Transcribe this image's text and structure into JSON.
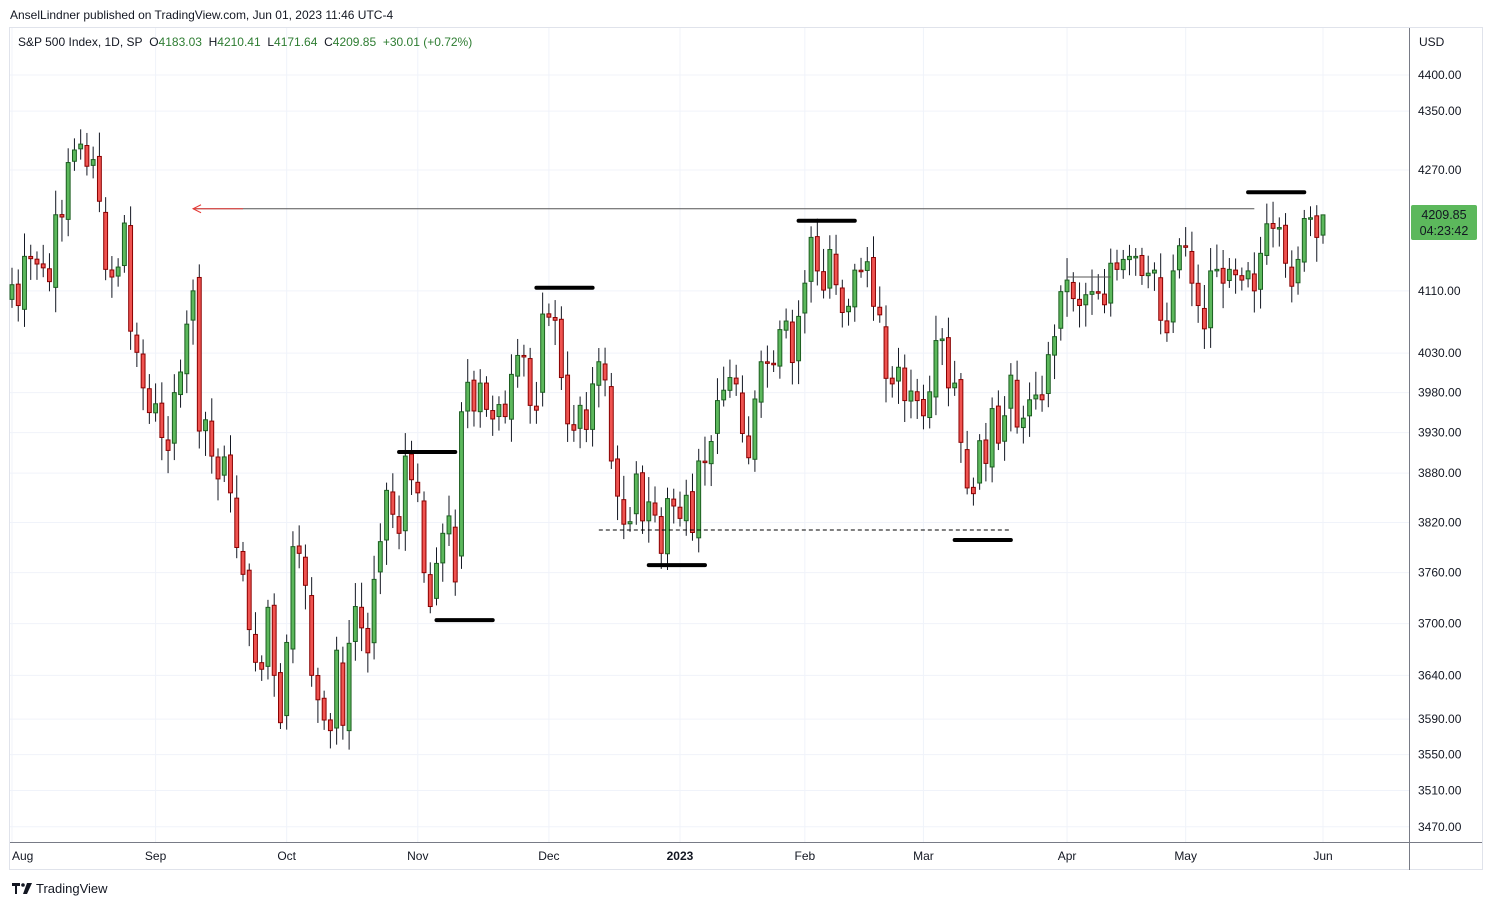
{
  "header": {
    "author_line": "AnselLindner published on TradingView.com, Jun 01, 2023 11:46 UTC-4",
    "symbol": "S&P 500 Index, 1D, SP",
    "open_label": "O",
    "open": "4183.03",
    "high_label": "H",
    "high": "4210.41",
    "low_label": "L",
    "low": "4171.64",
    "close_label": "C",
    "close": "4209.85",
    "change": "+30.01 (+0.72%)"
  },
  "currency": "USD",
  "last_price": {
    "price": "4209.85",
    "countdown": "04:23:42"
  },
  "brand": "TradingView",
  "colors": {
    "up": "#5cb85c",
    "up_border": "#1b5e20",
    "down": "#ef5350",
    "down_border": "#8b0000",
    "wick": "#131722",
    "arrow": "#e53935"
  },
  "chart_data": {
    "type": "candlestick",
    "title": "S&P 500 Index, 1D, SP",
    "scale": "log",
    "ylim": [
      3440,
      4440
    ],
    "price_ticks": [
      4400,
      4350,
      4270,
      4110,
      4030,
      3980,
      3930,
      3880,
      3820,
      3760,
      3700,
      3640,
      3590,
      3550,
      3510,
      3470
    ],
    "month_ticks": [
      {
        "label": "Aug",
        "index": 0
      },
      {
        "label": "Sep",
        "index": 23
      },
      {
        "label": "Oct",
        "index": 44
      },
      {
        "label": "Nov",
        "index": 65
      },
      {
        "label": "Dec",
        "index": 86
      },
      {
        "label": "2023",
        "index": 107,
        "bold": true
      },
      {
        "label": "Feb",
        "index": 127
      },
      {
        "label": "Mar",
        "index": 146
      },
      {
        "label": "Apr",
        "index": 169
      },
      {
        "label": "May",
        "index": 188
      },
      {
        "label": "Jun",
        "index": 210
      }
    ],
    "closes": [
      4118,
      4091,
      4155,
      4152,
      4145,
      4140,
      4122,
      4210,
      4207,
      4280,
      4297,
      4305,
      4275,
      4284,
      4228,
      4138,
      4128,
      4141,
      4199,
      4058,
      4031,
      3986,
      3955,
      3966,
      3924,
      3908,
      3980,
      4006,
      4067,
      4110,
      3932,
      3946,
      3901,
      3873,
      3900,
      3856,
      3790,
      3758,
      3693,
      3655,
      3647,
      3719,
      3640,
      3586,
      3678,
      3791,
      3783,
      3745,
      3640,
      3612,
      3589,
      3577,
      3669,
      3583,
      3677,
      3720,
      3695,
      3666,
      3752,
      3797,
      3859,
      3830,
      3807,
      3901,
      3872,
      3856,
      3760,
      3720,
      3771,
      3807,
      3828,
      3749,
      3956,
      3993,
      3957,
      3992,
      3959,
      3947,
      3965,
      3950,
      4003,
      4027,
      4026,
      3964,
      3958,
      4080,
      4076,
      4072,
      3999,
      3941,
      3933,
      3964,
      3934,
      3991,
      4019,
      3996,
      3895,
      3852,
      3818,
      3821,
      3879,
      3822,
      3845,
      3829,
      3783,
      3849,
      3840,
      3825,
      3853,
      3808,
      3895,
      3893,
      3919,
      3970,
      3983,
      3999,
      3991,
      3929,
      3899,
      3972,
      4019,
      4017,
      4016,
      4060,
      4071,
      4018,
      4077,
      4120,
      4180,
      4136,
      4111,
      4164,
      4118,
      4082,
      4090,
      4137,
      4136,
      4148,
      4090,
      4079,
      3998,
      3991,
      4012,
      3970,
      3982,
      3970,
      3951,
      3981,
      4046,
      4048,
      3986,
      3992,
      3918,
      3862,
      3855,
      3920,
      3892,
      3960,
      3917,
      3951,
      4002,
      3937,
      3948,
      3971,
      3977,
      3971,
      4028,
      4051,
      4109,
      4124,
      4100,
      4091,
      4105,
      4109,
      4108,
      4092,
      4146,
      4138,
      4151,
      4155,
      4155,
      4130,
      4133,
      4137,
      4072,
      4056,
      4136,
      4169,
      4168,
      4120,
      4091,
      4061,
      4136,
      4138,
      4120,
      4138,
      4131,
      4124,
      4136,
      4110,
      4159,
      4198,
      4192,
      4193,
      4146,
      4116,
      4151,
      4205,
      4206,
      4180,
      4209.85
    ],
    "last_candle": {
      "open": 4183.03,
      "high": 4210.41,
      "low": 4171.64,
      "close": 4209.85
    },
    "annotations": [
      {
        "type": "arrow-line",
        "price": 4218,
        "from_index": 29,
        "to_index": 199,
        "direction": "left"
      },
      {
        "type": "level",
        "price": 4240,
        "from_index": 198,
        "to_index": 207
      },
      {
        "type": "level",
        "price": 4202,
        "from_index": 126,
        "to_index": 135
      },
      {
        "type": "level",
        "price": 4114,
        "from_index": 84,
        "to_index": 93
      },
      {
        "type": "level",
        "price": 3906,
        "from_index": 62,
        "to_index": 71
      },
      {
        "type": "level",
        "price": 3704,
        "from_index": 68,
        "to_index": 77
      },
      {
        "type": "level",
        "price": 3769,
        "from_index": 102,
        "to_index": 111
      },
      {
        "type": "level",
        "price": 3799,
        "from_index": 151,
        "to_index": 160
      },
      {
        "type": "dashed-line",
        "price": 3811,
        "from_index": 94,
        "to_index": 160
      },
      {
        "type": "thin-line",
        "price": 4128,
        "from_index": 169,
        "to_index": 176
      }
    ]
  }
}
